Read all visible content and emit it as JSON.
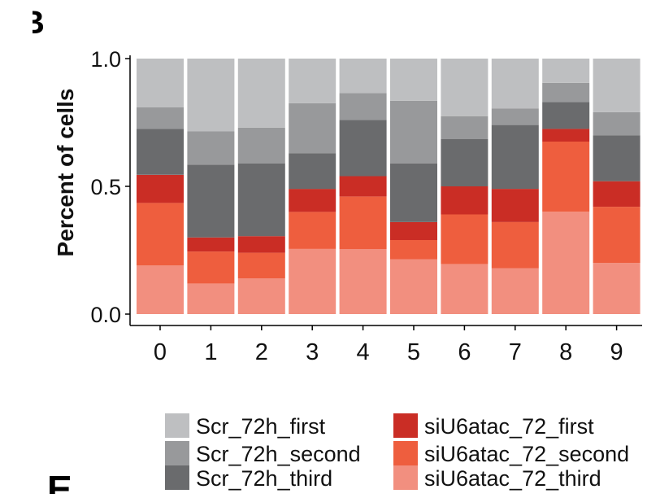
{
  "panel_letters": {
    "top": "B",
    "bottom": "E"
  },
  "chart_data": {
    "type": "bar",
    "stacked": true,
    "normalized": true,
    "categories": [
      "0",
      "1",
      "2",
      "3",
      "4",
      "5",
      "6",
      "7",
      "8",
      "9"
    ],
    "ylabel": "Percent of cells",
    "xlabel": "",
    "ylim": [
      0,
      1
    ],
    "yticks": [
      0.0,
      0.5,
      1.0
    ],
    "ytick_labels": [
      "0.0",
      "0.5",
      "1.0"
    ],
    "legend_position": "bottom",
    "series": [
      {
        "name": "siU6atac_72_third",
        "color": "#f28f7f",
        "values": [
          0.19,
          0.12,
          0.14,
          0.255,
          0.255,
          0.215,
          0.195,
          0.18,
          0.4,
          0.2
        ]
      },
      {
        "name": "siU6atac_72_second",
        "color": "#ee5e3e",
        "values": [
          0.245,
          0.125,
          0.1,
          0.145,
          0.205,
          0.075,
          0.195,
          0.18,
          0.275,
          0.22
        ]
      },
      {
        "name": "siU6atac_72_first",
        "color": "#ca2d25",
        "values": [
          0.11,
          0.055,
          0.065,
          0.09,
          0.08,
          0.07,
          0.11,
          0.13,
          0.05,
          0.1
        ]
      },
      {
        "name": "Scr_72h_third",
        "color": "#6a6b6d",
        "values": [
          0.18,
          0.285,
          0.285,
          0.14,
          0.22,
          0.23,
          0.185,
          0.25,
          0.105,
          0.18
        ]
      },
      {
        "name": "Scr_72h_second",
        "color": "#98999b",
        "values": [
          0.085,
          0.13,
          0.14,
          0.195,
          0.105,
          0.245,
          0.09,
          0.065,
          0.075,
          0.09
        ]
      },
      {
        "name": "Scr_72h_first",
        "color": "#bebfc1",
        "values": [
          0.19,
          0.285,
          0.27,
          0.175,
          0.135,
          0.165,
          0.225,
          0.195,
          0.095,
          0.21
        ]
      }
    ],
    "legend": {
      "left_column": [
        "Scr_72h_first",
        "Scr_72h_second",
        "Scr_72h_third"
      ],
      "right_column": [
        "siU6atac_72_first",
        "siU6atac_72_second",
        "siU6atac_72_third"
      ]
    }
  }
}
